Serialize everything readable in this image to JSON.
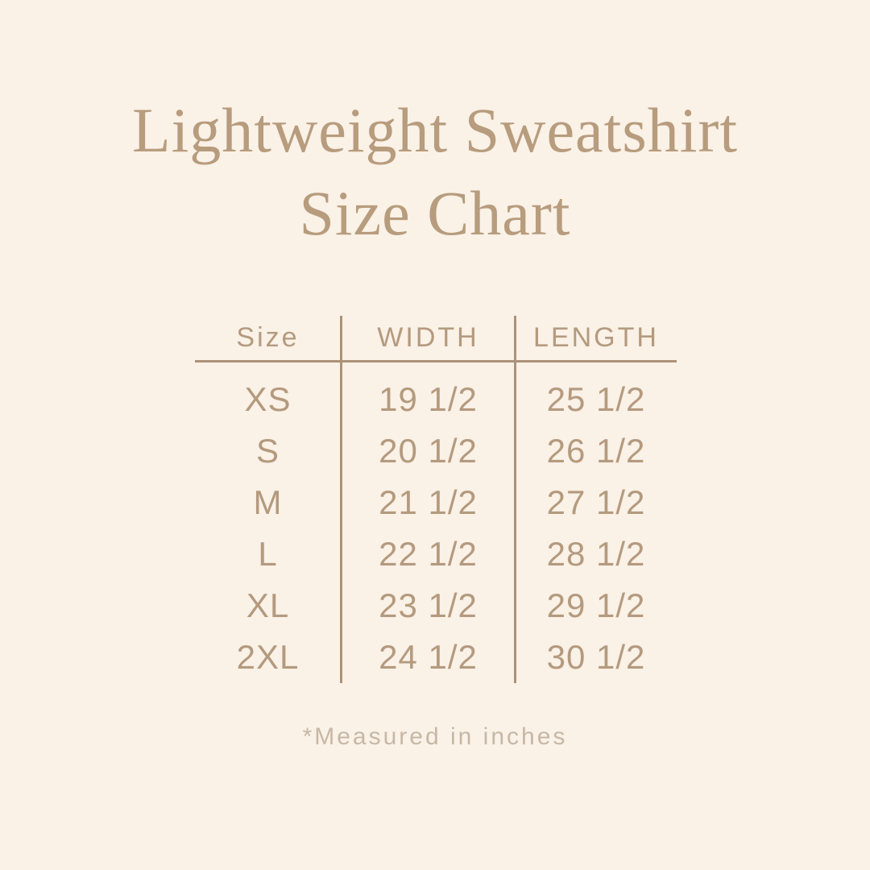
{
  "title": {
    "line1": "Lightweight Sweatshirt",
    "line2": "Size Chart"
  },
  "table": {
    "headers": [
      "Size",
      "WIDTH",
      "LENGTH"
    ],
    "rows": [
      {
        "size": "XS",
        "width": "19 1/2",
        "length": "25 1/2"
      },
      {
        "size": "S",
        "width": "20 1/2",
        "length": "26 1/2"
      },
      {
        "size": "M",
        "width": "21 1/2",
        "length": "27 1/2"
      },
      {
        "size": "L",
        "width": "22 1/2",
        "length": "28 1/2"
      },
      {
        "size": "XL",
        "width": "23 1/2",
        "length": "29 1/2"
      },
      {
        "size": "2XL",
        "width": "24 1/2",
        "length": "30 1/2"
      }
    ]
  },
  "footnote": "*Measured in inches",
  "colors": {
    "bg": "#FAF1E7",
    "title": "#B79C7D",
    "text": "#B49A7E",
    "line": "#AC9279",
    "muted": "#C6B8A5"
  },
  "chart_data": {
    "type": "table",
    "title": "Lightweight Sweatshirt Size Chart",
    "columns": [
      "Size",
      "WIDTH",
      "LENGTH"
    ],
    "rows": [
      [
        "XS",
        19.5,
        25.5
      ],
      [
        "S",
        20.5,
        26.5
      ],
      [
        "M",
        21.5,
        27.5
      ],
      [
        "L",
        22.5,
        28.5
      ],
      [
        "XL",
        23.5,
        29.5
      ],
      [
        "2XL",
        24.5,
        30.5
      ]
    ],
    "units": "inches",
    "note": "*Measured in inches"
  }
}
